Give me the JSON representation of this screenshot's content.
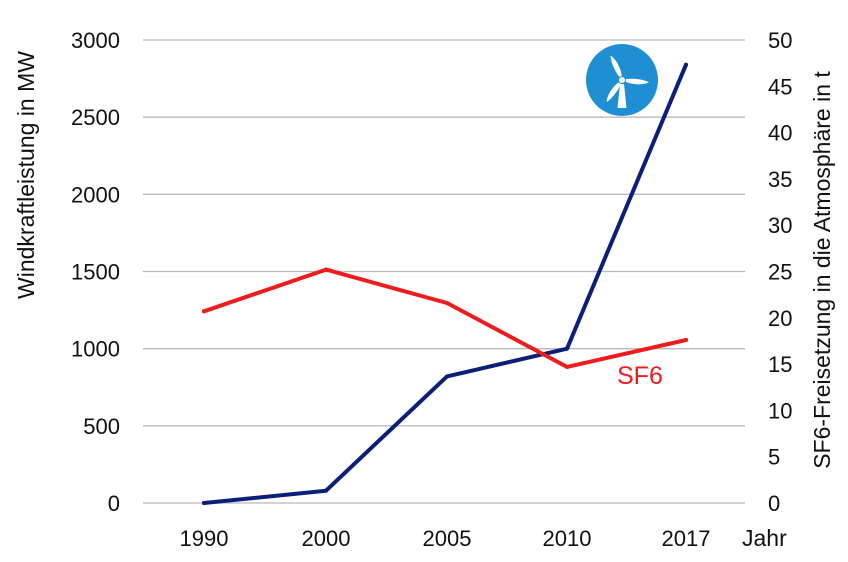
{
  "chart_data": {
    "type": "line",
    "x": [
      "1990",
      "2000",
      "2005",
      "2010",
      "2017"
    ],
    "xlabel": "Jahr",
    "ylabel": "Windkraftleistung in MW",
    "y2label": "SF6-Freisetzung in die Atmosphäre in t",
    "ylim": [
      0,
      3000
    ],
    "y2lim": [
      0,
      50
    ],
    "yticks": [
      "0",
      "500",
      "1000",
      "1500",
      "2000",
      "2500",
      "3000"
    ],
    "y2ticks": [
      "0",
      "5",
      "10",
      "15",
      "20",
      "25",
      "30",
      "35",
      "40",
      "45",
      "50"
    ],
    "grid": true,
    "series": [
      {
        "name": "",
        "axis": "left",
        "color": "#0b1f7a",
        "values": [
          0,
          80,
          820,
          1000,
          2840
        ]
      },
      {
        "name": "SF6",
        "axis": "right",
        "color": "#ee1c1c",
        "values": [
          20.7,
          25.2,
          21.6,
          14.7,
          17.6
        ]
      }
    ],
    "icon": "wind-turbine-icon"
  }
}
